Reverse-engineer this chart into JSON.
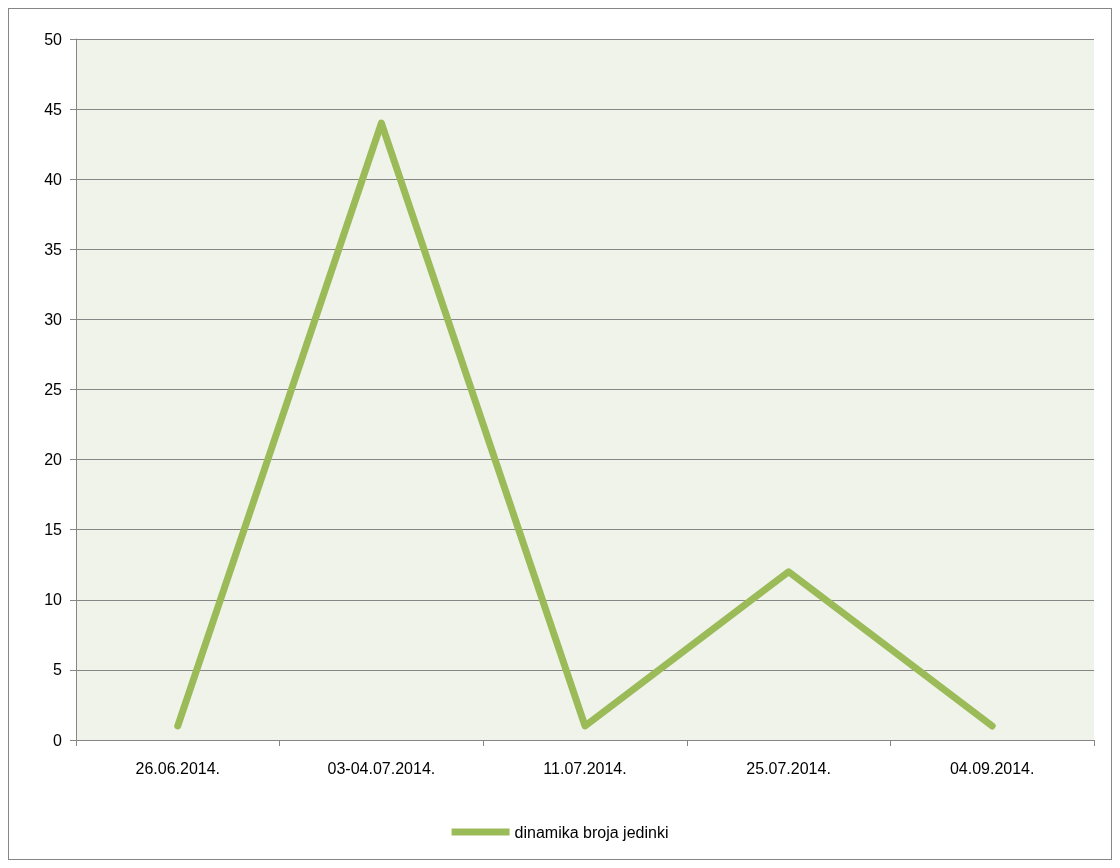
{
  "chart_data": {
    "type": "line",
    "categories": [
      "26.06.2014.",
      "03-04.07.2014.",
      "11.07.2014.",
      "25.07.2014.",
      "04.09.2014."
    ],
    "series": [
      {
        "name": "dinamika broja jedinki",
        "color": "#9bbb59",
        "values": [
          1,
          44,
          1,
          12,
          1
        ]
      }
    ],
    "ylim": [
      0,
      50
    ],
    "yticks": [
      0,
      5,
      10,
      15,
      20,
      25,
      30,
      35,
      40,
      45,
      50
    ],
    "grid": "y",
    "legend": "bottom",
    "marker": "none",
    "line_style": "solid"
  }
}
